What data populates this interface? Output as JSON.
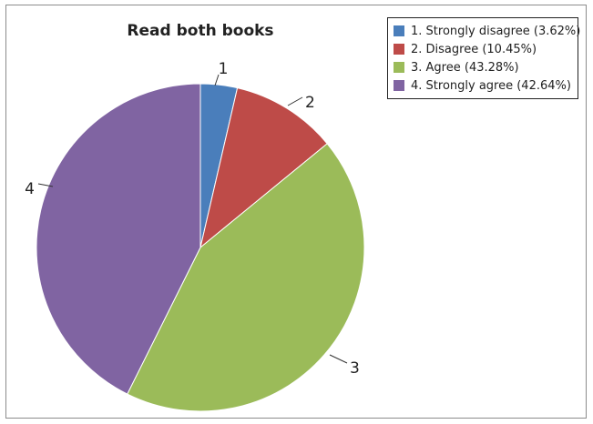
{
  "chart_data": {
    "type": "pie",
    "title": "Read both books",
    "legend_position": "top-right",
    "slices": [
      {
        "label": "1",
        "legend": "1. Strongly disagree (3.62%)",
        "value": 3.62,
        "color": "#4a7ebb"
      },
      {
        "label": "2",
        "legend": "2. Disagree (10.45%)",
        "value": 10.45,
        "color": "#be4b48"
      },
      {
        "label": "3",
        "legend": "3. Agree (43.28%)",
        "value": 43.28,
        "color": "#9bbb59"
      },
      {
        "label": "4",
        "legend": "4. Strongly agree (42.64%)",
        "value": 42.64,
        "color": "#8064a2"
      }
    ]
  }
}
